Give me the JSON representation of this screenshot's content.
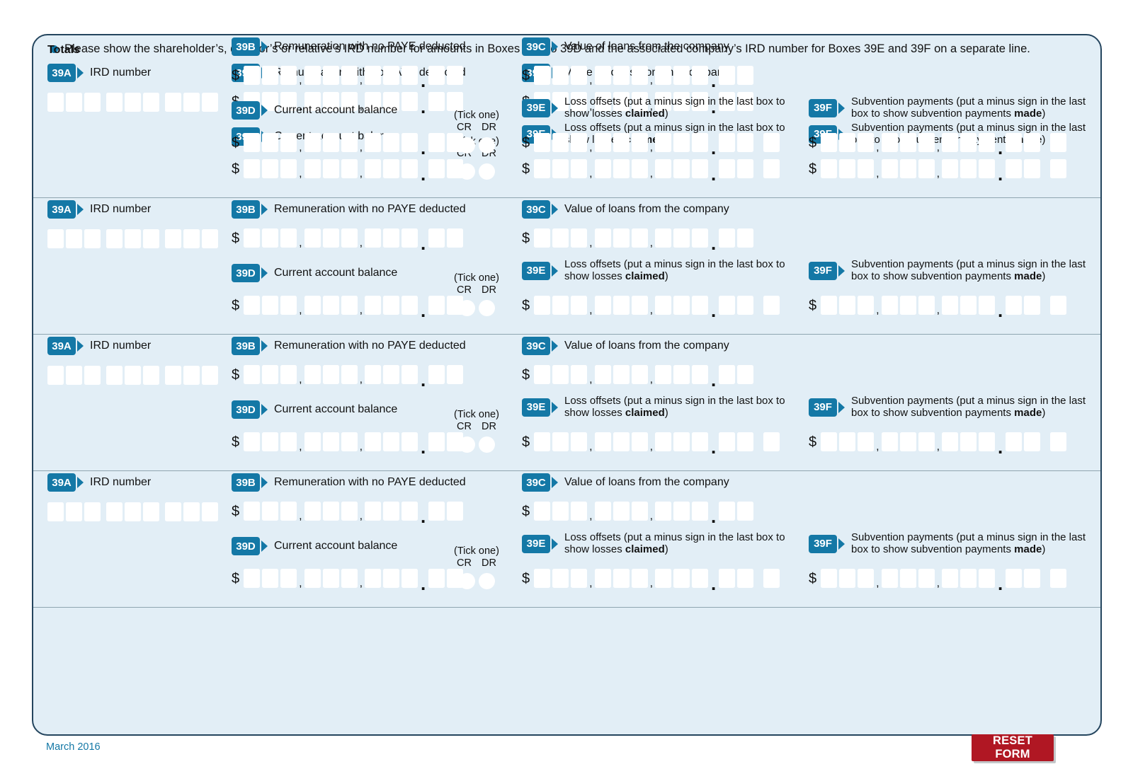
{
  "header": {
    "note": "Please show the shareholder’s, director’s or relative’s IRD number for amounts in Boxes 39B to 39D and the associated company’s IRD number for Boxes 39E and 39F on a separate line."
  },
  "fields": {
    "a": {
      "code": "39A",
      "label": "IRD number"
    },
    "b": {
      "code": "39B",
      "label": "Remuneration with no PAYE deducted"
    },
    "c": {
      "code": "39C",
      "label": "Value of loans from the company"
    },
    "d": {
      "code": "39D",
      "label": "Current account balance"
    },
    "e": {
      "code": "39E",
      "label_pre": "Loss offsets (put a minus sign in the last box to show losses ",
      "label_bold": "claimed",
      "label_post": ")"
    },
    "f": {
      "code": "39F",
      "label_pre": "Subvention payments (put a minus sign in the last box to show subvention payments ",
      "label_bold": "made",
      "label_post": ")"
    }
  },
  "tick": {
    "caption": "(Tick one)",
    "options": {
      "cr": "CR",
      "dr": "DR"
    }
  },
  "currency_symbol": "$",
  "separators": {
    "thousands": ",",
    "decimal": "."
  },
  "field_format": {
    "ird_groups": [
      3,
      3,
      3
    ],
    "money_groups": [
      3,
      3,
      3
    ],
    "cents_boxes": 2,
    "sign_box": 1
  },
  "rows_count": 4,
  "totals": {
    "label": "Totals"
  },
  "footer": {
    "version_date": "March 2016",
    "reset_button_label": "RESET FORM"
  },
  "colors": {
    "accent_blue": "#1478a6",
    "panel_bg": "#e2eef6",
    "reset_red": "#b01723",
    "footer_teal": "#1478a6"
  }
}
